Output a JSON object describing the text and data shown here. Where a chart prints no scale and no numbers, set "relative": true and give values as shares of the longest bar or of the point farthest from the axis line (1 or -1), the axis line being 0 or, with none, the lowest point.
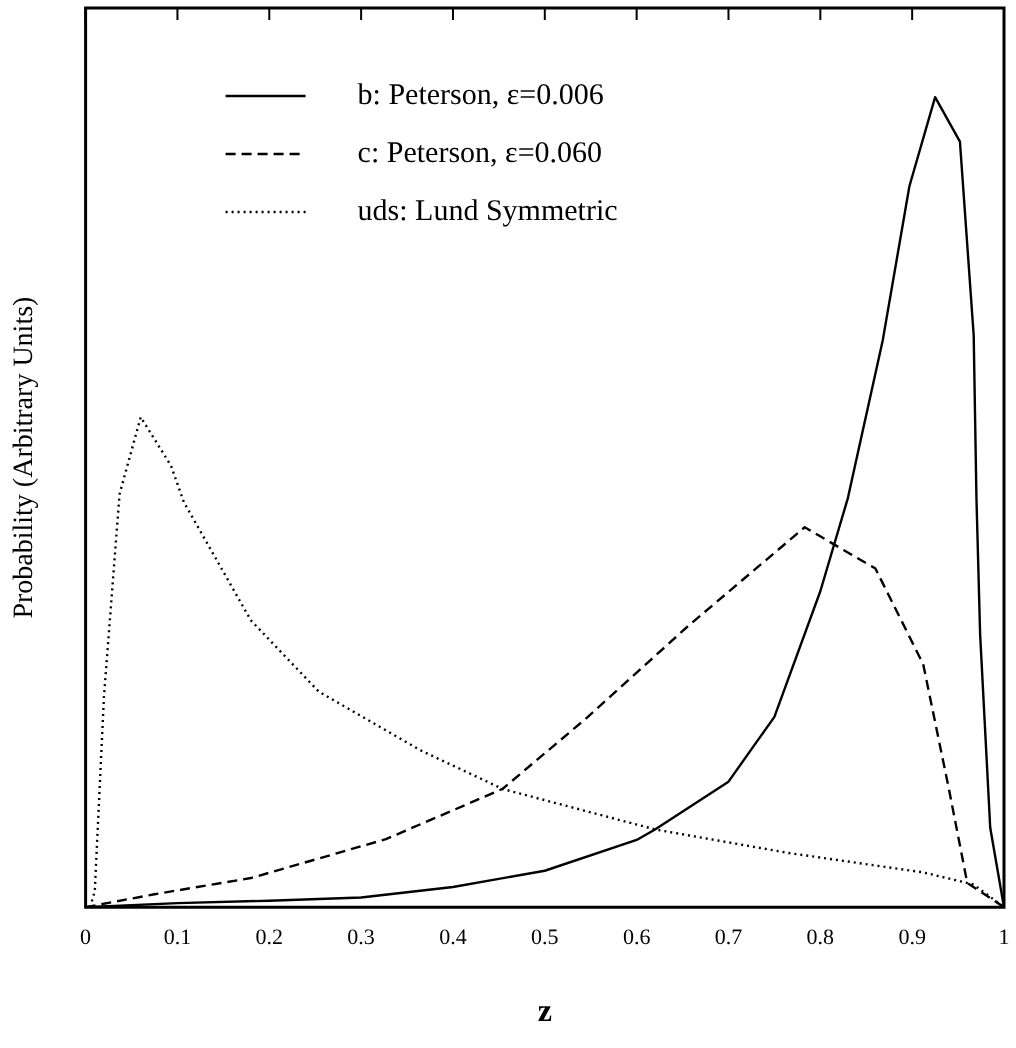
{
  "chart_data": {
    "type": "line",
    "xlabel": "z",
    "ylabel": "Probability (Arbitrary Units)",
    "relative": true,
    "xlim": [
      0,
      1
    ],
    "xticks": [
      0,
      0.1,
      0.2,
      0.3,
      0.4,
      0.5,
      0.6,
      0.7,
      0.8,
      0.9,
      1
    ],
    "grid": false,
    "legend": "top left",
    "marker": "none",
    "series": [
      {
        "name": "b: Peterson, ε=0.006",
        "color": "#000000",
        "line_style": "solid",
        "x": [
          0,
          0.1,
          0.2,
          0.3,
          0.4,
          0.5,
          0.6,
          0.62,
          0.7,
          0.75,
          0.8,
          0.83,
          0.868,
          0.897,
          0.925,
          0.952,
          0.967,
          0.97,
          0.974,
          0.985,
          1
        ],
        "values": [
          0,
          0.005,
          0.008,
          0.012,
          0.025,
          0.045,
          0.083,
          0.096,
          0.155,
          0.235,
          0.39,
          0.505,
          0.7,
          0.89,
          1,
          0.945,
          0.706,
          0.505,
          0.337,
          0.098,
          0
        ]
      },
      {
        "name": "c: Peterson, ε=0.060",
        "color": "#000000",
        "line_style": "dashed",
        "x": [
          0,
          0.075,
          0.18,
          0.327,
          0.454,
          0.546,
          0.656,
          0.783,
          0.86,
          0.912,
          0.94,
          0.96,
          1
        ],
        "values": [
          0,
          0.016,
          0.036,
          0.084,
          0.146,
          0.234,
          0.347,
          0.469,
          0.418,
          0.3,
          0.146,
          0.03,
          0
        ]
      },
      {
        "name": "uds: Lund Symmetric",
        "color": "#000000",
        "line_style": "dotted",
        "x": [
          0.005,
          0.01,
          0.02,
          0.037,
          0.06,
          0.093,
          0.107,
          0.18,
          0.254,
          0.364,
          0.454,
          0.62,
          0.765,
          0.912,
          0.967,
          1
        ],
        "values": [
          0,
          0.02,
          0.26,
          0.51,
          0.605,
          0.545,
          0.5,
          0.354,
          0.266,
          0.194,
          0.146,
          0.096,
          0.067,
          0.043,
          0.028,
          0
        ]
      }
    ]
  }
}
